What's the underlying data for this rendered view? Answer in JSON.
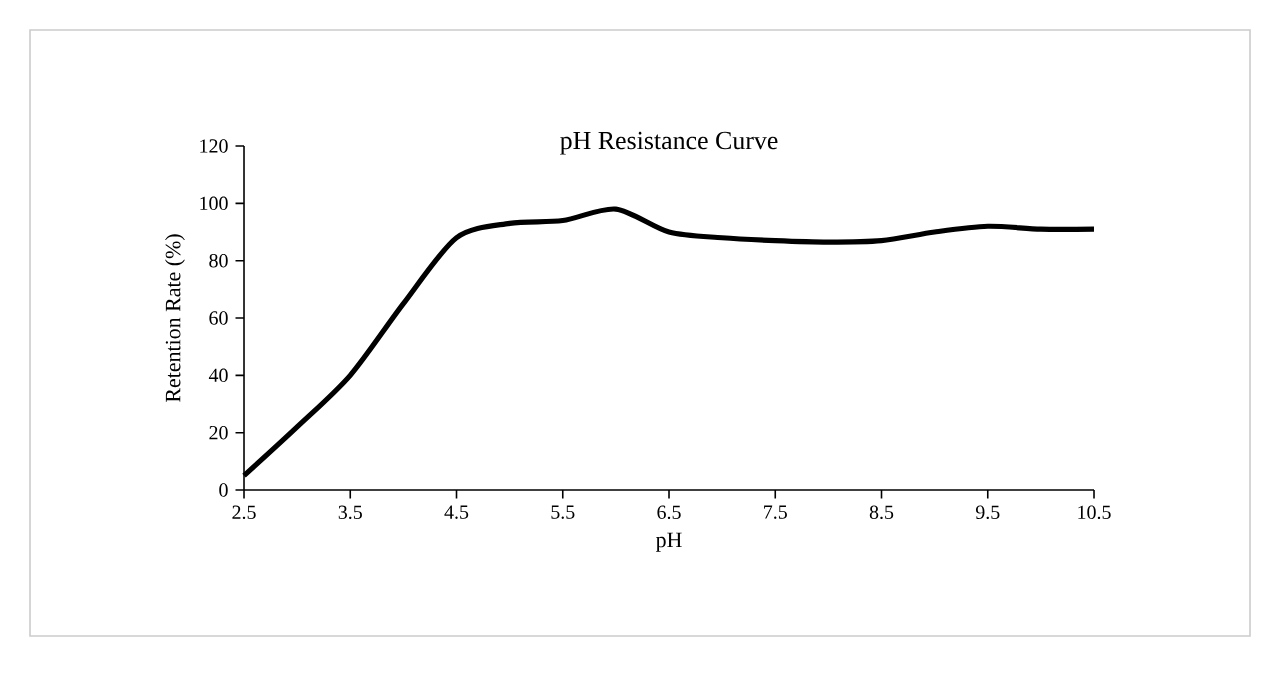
{
  "chart_data": {
    "type": "line",
    "title": "pH Resistance Curve",
    "xlabel": "pH",
    "ylabel": "Retention Rate (%)",
    "x": [
      2.5,
      3,
      3.5,
      4,
      4.5,
      5,
      5.5,
      6,
      6.5,
      7,
      7.5,
      8,
      8.5,
      9,
      9.5,
      10,
      10.5
    ],
    "series": [
      {
        "color": "#000000",
        "values": [
          5,
          22,
          40,
          65,
          88,
          93,
          94,
          98,
          90,
          88,
          87,
          86.5,
          87,
          90,
          92,
          91,
          91
        ]
      }
    ],
    "xlim": [
      2.5,
      10.5
    ],
    "xticks": [
      2.5,
      3.5,
      4.5,
      5.5,
      6.5,
      7.5,
      8.5,
      9.5,
      10.5
    ],
    "ylim": [
      0,
      120
    ],
    "yticks": [
      0,
      20,
      40,
      60,
      80,
      100,
      120
    ],
    "grid": false,
    "marker": "none",
    "line_style": "solid"
  }
}
